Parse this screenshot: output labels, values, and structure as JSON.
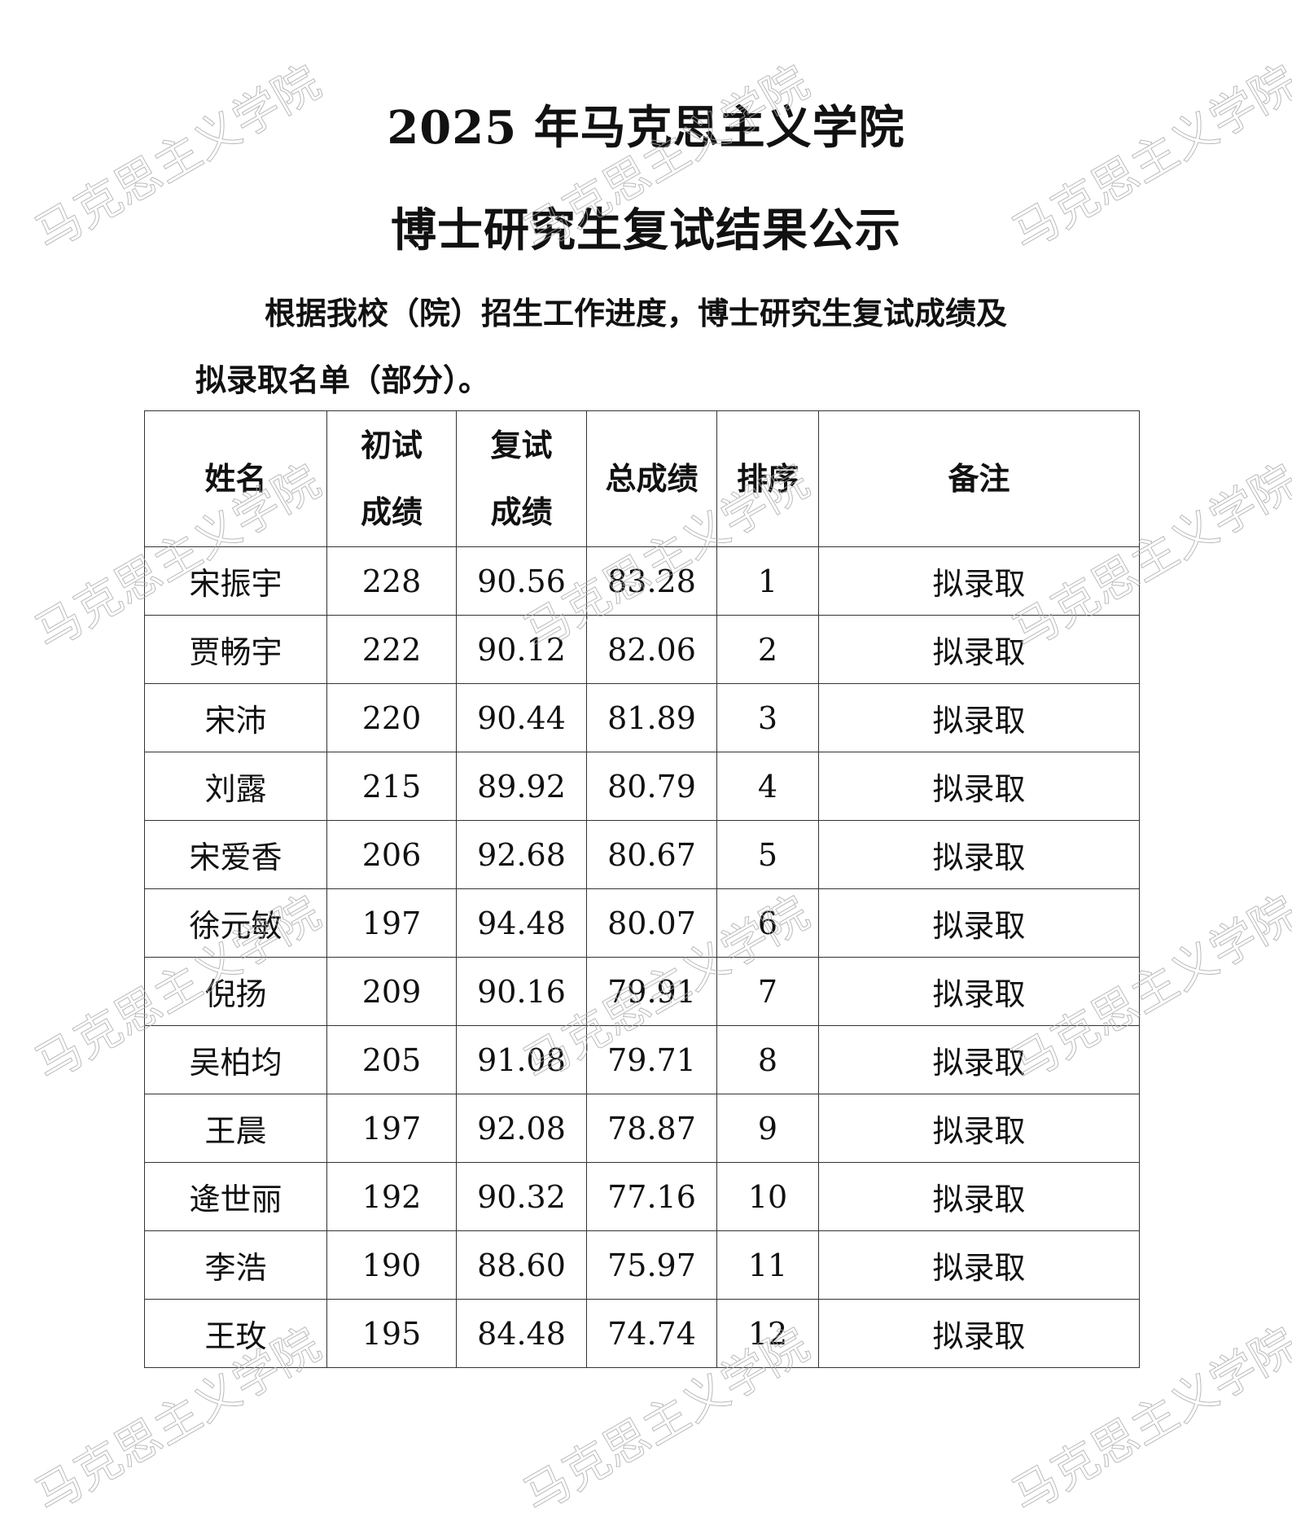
{
  "title": {
    "line1": "2025 年马克思主义学院",
    "line2": "博士研究生复试结果公示"
  },
  "intro": {
    "line1": "根据我校（院）招生工作进度，博士研究生复试成绩及",
    "line2": "拟录取名单（部分）。"
  },
  "table": {
    "headers": [
      "姓名",
      "初试\n成绩",
      "复试\n成绩",
      "总成绩",
      "排序",
      "备注"
    ],
    "rows": [
      [
        "宋振宇",
        "228",
        "90.56",
        "83.28",
        "1",
        "拟录取"
      ],
      [
        "贾畅宇",
        "222",
        "90.12",
        "82.06",
        "2",
        "拟录取"
      ],
      [
        "宋沛",
        "220",
        "90.44",
        "81.89",
        "3",
        "拟录取"
      ],
      [
        "刘露",
        "215",
        "89.92",
        "80.79",
        "4",
        "拟录取"
      ],
      [
        "宋爱香",
        "206",
        "92.68",
        "80.67",
        "5",
        "拟录取"
      ],
      [
        "徐元敏",
        "197",
        "94.48",
        "80.07",
        "6",
        "拟录取"
      ],
      [
        "倪扬",
        "209",
        "90.16",
        "79.91",
        "7",
        "拟录取"
      ],
      [
        "吴柏均",
        "205",
        "91.08",
        "79.71",
        "8",
        "拟录取"
      ],
      [
        "王晨",
        "197",
        "92.08",
        "78.87",
        "9",
        "拟录取"
      ],
      [
        "逄世丽",
        "192",
        "90.32",
        "77.16",
        "10",
        "拟录取"
      ],
      [
        "李浩",
        "190",
        "88.60",
        "75.97",
        "11",
        "拟录取"
      ],
      [
        "王玫",
        "195",
        "84.48",
        "74.74",
        "12",
        "拟录取"
      ]
    ]
  },
  "watermark": "马克思主义学院"
}
